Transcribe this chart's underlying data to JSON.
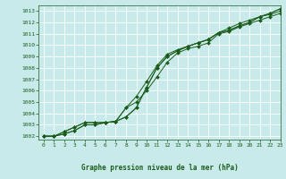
{
  "title": "Graphe pression niveau de la mer (hPa)",
  "bg_color": "#c8eaea",
  "plot_bg_color": "#c8eaea",
  "grid_color": "#ffffff",
  "line_color": "#1a5c1a",
  "xlim": [
    -0.5,
    23
  ],
  "ylim": [
    1001.7,
    1013.5
  ],
  "xticks": [
    0,
    1,
    2,
    3,
    4,
    5,
    6,
    7,
    8,
    9,
    10,
    11,
    12,
    13,
    14,
    15,
    16,
    17,
    18,
    19,
    20,
    21,
    22,
    23
  ],
  "yticks": [
    1002,
    1003,
    1004,
    1005,
    1006,
    1007,
    1008,
    1009,
    1010,
    1011,
    1012,
    1013
  ],
  "series": [
    [
      1002.0,
      1002.0,
      1002.2,
      1002.5,
      1003.0,
      1003.0,
      1003.2,
      1003.3,
      1003.7,
      1004.5,
      1006.3,
      1008.0,
      1009.0,
      1009.5,
      1009.9,
      1010.2,
      1010.5,
      1011.1,
      1011.3,
      1011.7,
      1012.0,
      1012.5,
      1012.8,
      1013.2
    ],
    [
      1002.0,
      1002.0,
      1002.2,
      1002.5,
      1003.0,
      1003.0,
      1003.2,
      1003.3,
      1003.7,
      1004.5,
      1006.3,
      1008.0,
      1009.0,
      1009.5,
      1009.9,
      1010.2,
      1010.5,
      1011.1,
      1011.3,
      1011.7,
      1012.0,
      1012.5,
      1012.8,
      1013.2
    ],
    [
      1002.0,
      1002.0,
      1002.4,
      1002.8,
      1003.2,
      1003.2,
      1003.2,
      1003.3,
      1004.5,
      1005.5,
      1006.8,
      1008.2,
      1009.2,
      1009.6,
      1009.9,
      1010.2,
      1010.5,
      1011.1,
      1011.5,
      1011.9,
      1012.2,
      1012.5,
      1012.7,
      1013.0
    ],
    [
      1002.0,
      1002.0,
      1002.4,
      1002.8,
      1003.2,
      1003.2,
      1003.2,
      1003.3,
      1004.5,
      1005.0,
      1006.0,
      1007.2,
      1008.5,
      1009.3,
      1009.7,
      1009.9,
      1010.2,
      1011.0,
      1011.2,
      1011.6,
      1011.9,
      1012.2,
      1012.5,
      1012.8
    ]
  ]
}
